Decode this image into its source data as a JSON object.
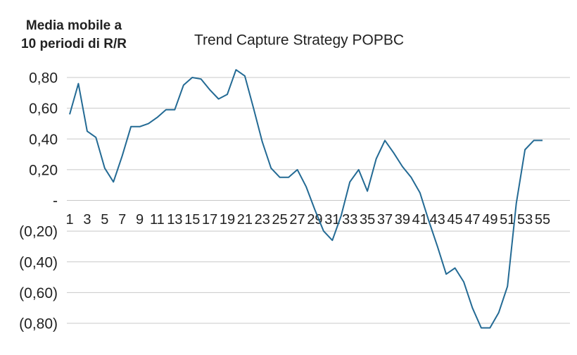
{
  "chart_data": {
    "type": "line",
    "title": "Trend Capture Strategy POPBC",
    "y_axis_label": [
      "Media mobile a",
      "10 periodi di R/R"
    ],
    "categories": [
      1,
      null,
      3,
      null,
      5,
      null,
      7,
      null,
      9,
      null,
      11,
      null,
      13,
      null,
      15,
      null,
      17,
      null,
      19,
      null,
      21,
      null,
      23,
      null,
      25,
      null,
      27,
      null,
      29,
      null,
      31,
      null,
      33,
      null,
      35,
      null,
      37,
      null,
      39,
      null,
      41,
      null,
      43,
      null,
      45,
      null,
      47,
      null,
      49,
      null,
      51,
      null,
      53,
      null,
      55
    ],
    "series": [
      {
        "name": "Media mobile a 10 periodi di R/R",
        "color": "#236a94",
        "values": [
          0.56,
          0.76,
          0.45,
          0.41,
          0.21,
          0.12,
          0.29,
          0.48,
          0.48,
          0.5,
          0.54,
          0.59,
          0.59,
          0.75,
          0.8,
          0.79,
          0.72,
          0.66,
          0.69,
          0.85,
          0.81,
          0.6,
          0.38,
          0.21,
          0.15,
          0.15,
          0.2,
          0.09,
          -0.06,
          -0.2,
          -0.26,
          -0.1,
          0.12,
          0.2,
          0.06,
          0.27,
          0.39,
          0.31,
          0.22,
          0.15,
          0.05,
          -0.13,
          -0.3,
          -0.48,
          -0.44,
          -0.53,
          -0.7,
          -0.83,
          -0.83,
          -0.73,
          -0.56,
          -0.02,
          0.33,
          0.39,
          0.39
        ]
      }
    ],
    "ylim": [
      -0.8,
      0.8
    ],
    "yticks": [
      {
        "value": -0.8,
        "label": "(0,80)"
      },
      {
        "value": -0.6,
        "label": "(0,60)"
      },
      {
        "value": -0.4,
        "label": "(0,40)"
      },
      {
        "value": -0.2,
        "label": "(0,20)"
      },
      {
        "value": 0,
        "label": "-"
      },
      {
        "value": 0.2,
        "label": "0,20"
      },
      {
        "value": 0.4,
        "label": "0,40"
      },
      {
        "value": 0.6,
        "label": "0,60"
      },
      {
        "value": 0.8,
        "label": "0,80"
      }
    ],
    "grid": true
  }
}
